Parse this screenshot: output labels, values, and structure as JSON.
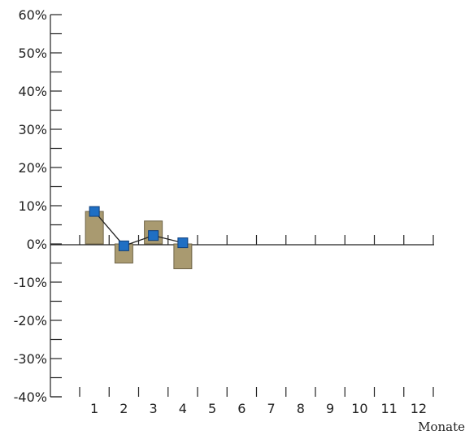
{
  "chart_data": {
    "type": "bar",
    "title": "",
    "xlabel": "Monate",
    "ylabel": "",
    "categories": [
      "1",
      "2",
      "3",
      "4",
      "5",
      "6",
      "7",
      "8",
      "9",
      "10",
      "11",
      "12"
    ],
    "y_tick_labels": [
      "60%",
      "50%",
      "40%",
      "30%",
      "20%",
      "10%",
      "0%",
      "-10%",
      "-20%",
      "-30%",
      "-40%"
    ],
    "y_ticks": [
      60,
      50,
      40,
      30,
      20,
      10,
      0,
      -10,
      -20,
      -30,
      -40
    ],
    "ylim": [
      -40,
      60
    ],
    "grid": false,
    "series": [
      {
        "type": "bar",
        "values": [
          8.5,
          -5,
          6,
          -6.5,
          null,
          null,
          null,
          null,
          null,
          null,
          null,
          null
        ]
      },
      {
        "type": "line",
        "values": [
          8.5,
          -0.5,
          2.2,
          0.3,
          null,
          null,
          null,
          null,
          null,
          null,
          null,
          null
        ]
      }
    ],
    "colors": {
      "bar_fill": "#a99a70",
      "bar_stroke": "#6f6448",
      "marker_fill": "#1f6fc4",
      "marker_stroke": "#0f3e7a",
      "line": "#222222",
      "axis": "#222222"
    }
  }
}
